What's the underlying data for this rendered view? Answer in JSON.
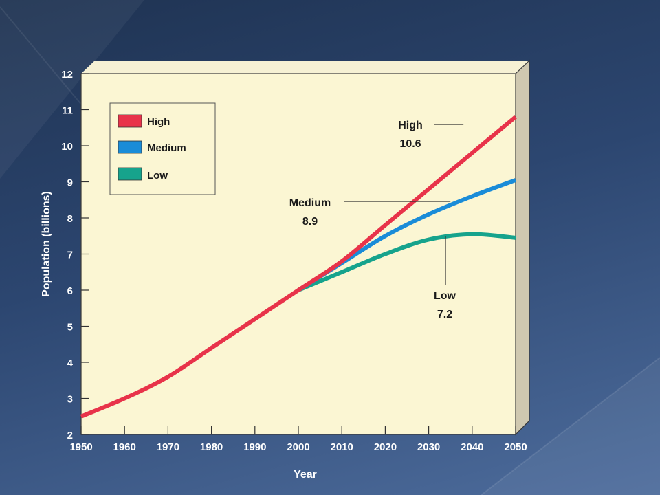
{
  "chart_data": {
    "type": "line",
    "xlabel": "Year",
    "ylabel": "Population (billions)",
    "xlim": [
      1950,
      2050
    ],
    "ylim": [
      2,
      12
    ],
    "x_ticks": [
      1950,
      1960,
      1970,
      1980,
      1990,
      2000,
      2010,
      2020,
      2030,
      2040,
      2050
    ],
    "y_ticks": [
      2,
      3,
      4,
      5,
      6,
      7,
      8,
      9,
      10,
      11,
      12
    ],
    "grid": false,
    "legend_position": "top-left",
    "series": [
      {
        "name": "High",
        "color": "#e8334a",
        "x": [
          1950,
          1960,
          1970,
          1980,
          1990,
          2000,
          2010,
          2020,
          2030,
          2040,
          2050
        ],
        "y": [
          2.5,
          3.0,
          3.6,
          4.4,
          5.2,
          6.0,
          6.8,
          7.8,
          8.8,
          9.8,
          10.8
        ]
      },
      {
        "name": "Medium",
        "color": "#1a8cd8",
        "x": [
          2000,
          2010,
          2020,
          2030,
          2040,
          2050
        ],
        "y": [
          6.0,
          6.75,
          7.5,
          8.1,
          8.6,
          9.05
        ]
      },
      {
        "name": "Low",
        "color": "#16a38c",
        "x": [
          2000,
          2010,
          2020,
          2030,
          2040,
          2050
        ],
        "y": [
          6.0,
          6.5,
          7.0,
          7.4,
          7.55,
          7.45
        ]
      }
    ],
    "annotations": [
      {
        "series": "High",
        "label": "High",
        "value": "10.6"
      },
      {
        "series": "Medium",
        "label": "Medium",
        "value": "8.9"
      },
      {
        "series": "Low",
        "label": "Low",
        "value": "7.2"
      }
    ]
  }
}
